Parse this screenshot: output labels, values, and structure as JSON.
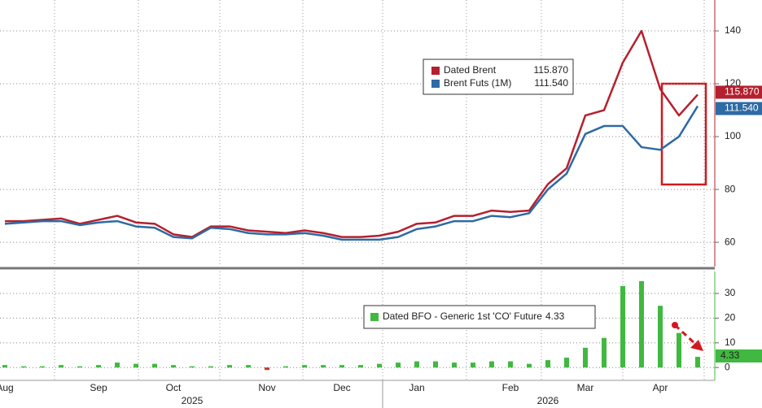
{
  "chart_data": [
    {
      "type": "line",
      "series": [
        {
          "name": "Dated Brent",
          "color": "#b5202e",
          "last_label": "115.870",
          "values": [
            68,
            68,
            68.5,
            69,
            67,
            68.5,
            70,
            67.5,
            67,
            63,
            62,
            66,
            66,
            64.5,
            64,
            63.5,
            64.5,
            63.5,
            62,
            62,
            62.5,
            64,
            67,
            67.5,
            70,
            70,
            72,
            71.5,
            72,
            82,
            88,
            108,
            110,
            128,
            140,
            118,
            108,
            115.87
          ]
        },
        {
          "name": "Brent Futs (1M)",
          "color": "#2e6aa3",
          "last_label": "111.540",
          "values": [
            67,
            67.5,
            68,
            68,
            66.5,
            67.5,
            68,
            66,
            65.5,
            62,
            61.5,
            65.5,
            65,
            63.5,
            63,
            63,
            63.5,
            62.5,
            61,
            61,
            61,
            62,
            65,
            66,
            68,
            68,
            70,
            69.5,
            71,
            80,
            86,
            101,
            104,
            104,
            96,
            95,
            100,
            111.54
          ]
        }
      ],
      "ylim": [
        50.8,
        151.7
      ],
      "yticks": [
        60,
        80,
        100,
        120,
        140
      ],
      "grid": true
    },
    {
      "type": "bar",
      "categories": [
        "Aug",
        null,
        null,
        null,
        null,
        "Sep",
        null,
        null,
        null,
        "Oct",
        null,
        null,
        null,
        null,
        "Nov",
        null,
        null,
        null,
        "Dec",
        null,
        null,
        null,
        "Jan",
        null,
        null,
        null,
        null,
        "Feb",
        null,
        null,
        null,
        "Mar",
        null,
        null,
        null,
        "Apr",
        null,
        null
      ],
      "years": [
        null,
        null,
        null,
        null,
        null,
        null,
        null,
        null,
        null,
        null,
        "2025",
        null,
        null,
        null,
        null,
        null,
        null,
        null,
        null,
        null,
        null,
        null,
        null,
        null,
        null,
        null,
        null,
        null,
        null,
        "2026",
        null,
        null,
        null,
        null,
        null,
        null,
        null,
        null
      ],
      "series": [
        {
          "name": "Dated BFO - Generic 1st 'CO' Future",
          "color": "#41b841",
          "negative_color": "#c0392b",
          "values": [
            1,
            0.5,
            0.5,
            1,
            0.5,
            1,
            2,
            1.5,
            1.5,
            1,
            0.5,
            0.5,
            1,
            1,
            -1,
            0.5,
            1,
            1,
            1,
            1,
            1.5,
            2,
            2.5,
            2.5,
            2,
            2,
            2.5,
            2.5,
            1.5,
            3,
            4,
            8,
            12,
            33,
            35,
            25,
            14,
            4.33
          ]
        }
      ],
      "ylim": [
        -5.2,
        38.9
      ],
      "yticks": [
        0,
        10,
        20,
        30
      ],
      "grid": true
    }
  ]
}
